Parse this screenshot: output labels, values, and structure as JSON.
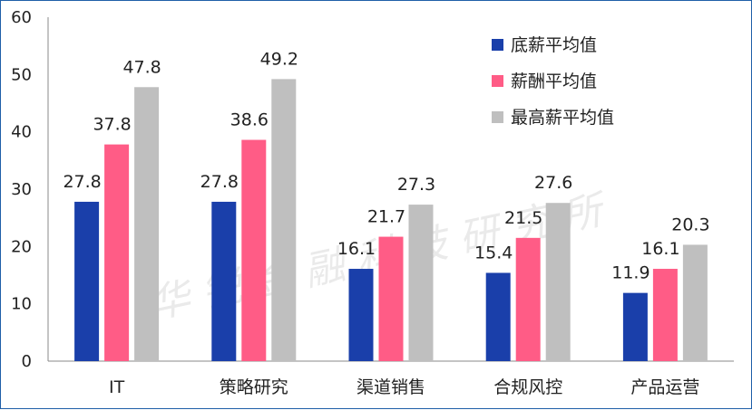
{
  "watermark": "华锐金融科技研究所",
  "chart_data": {
    "type": "bar",
    "categories": [
      "IT",
      "策略研究",
      "渠道销售",
      "合规风控",
      "产品运营"
    ],
    "series": [
      {
        "name": "底薪平均值",
        "color": "#1a3faa",
        "values": [
          27.8,
          27.8,
          16.1,
          15.4,
          11.9
        ]
      },
      {
        "name": "薪酬平均值",
        "color": "#ff5c86",
        "values": [
          37.8,
          38.6,
          21.7,
          21.5,
          16.1
        ]
      },
      {
        "name": "最高薪平均值",
        "color": "#bfbfbf",
        "values": [
          47.8,
          49.2,
          27.3,
          27.6,
          20.3
        ]
      }
    ],
    "ylim": [
      0,
      60
    ],
    "yticks": [
      0,
      10,
      20,
      30,
      40,
      50,
      60
    ],
    "grid": false,
    "legend_position": "top-right"
  }
}
